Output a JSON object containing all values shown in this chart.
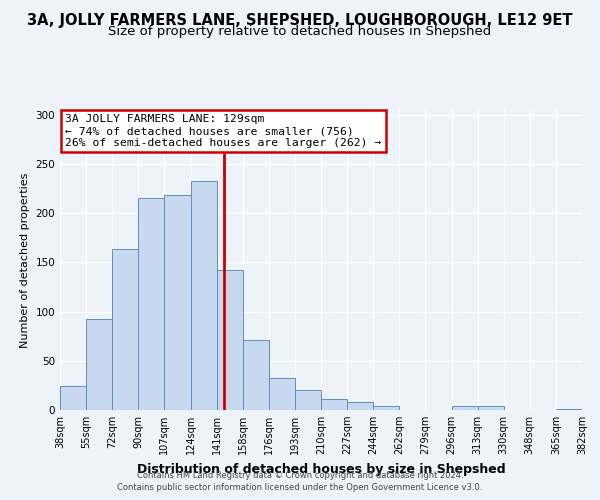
{
  "title": "3A, JOLLY FARMERS LANE, SHEPSHED, LOUGHBOROUGH, LE12 9ET",
  "subtitle": "Size of property relative to detached houses in Shepshed",
  "xlabel": "Distribution of detached houses by size in Shepshed",
  "ylabel": "Number of detached properties",
  "bar_values": [
    24,
    93,
    164,
    216,
    219,
    233,
    142,
    71,
    33,
    20,
    11,
    8,
    4,
    0,
    0,
    4,
    4,
    0,
    0,
    1
  ],
  "bar_labels": [
    "38sqm",
    "55sqm",
    "72sqm",
    "90sqm",
    "107sqm",
    "124sqm",
    "141sqm",
    "158sqm",
    "176sqm",
    "193sqm",
    "210sqm",
    "227sqm",
    "244sqm",
    "262sqm",
    "279sqm",
    "296sqm",
    "313sqm",
    "330sqm",
    "348sqm",
    "365sqm",
    "382sqm"
  ],
  "bar_color": "#c8d9ef",
  "bar_edge_color": "#5b8fc3",
  "vline_color": "#cc0000",
  "annotation_title": "3A JOLLY FARMERS LANE: 129sqm",
  "annotation_line1": "← 74% of detached houses are smaller (756)",
  "annotation_line2": "26% of semi-detached houses are larger (262) →",
  "annotation_box_color": "#ffffff",
  "annotation_box_edge": "#cc0000",
  "ylim": [
    0,
    305
  ],
  "footnote1": "Contains HM Land Registry data © Crown copyright and database right 2024.",
  "footnote2": "Contains public sector information licensed under the Open Government Licence v3.0.",
  "background_color": "#eef2f9",
  "grid_color": "#ffffff",
  "title_fontsize": 10.5,
  "subtitle_fontsize": 9.5,
  "ylabel_fontsize": 8,
  "xlabel_fontsize": 9,
  "tick_fontsize": 7,
  "footnote_fontsize": 6
}
